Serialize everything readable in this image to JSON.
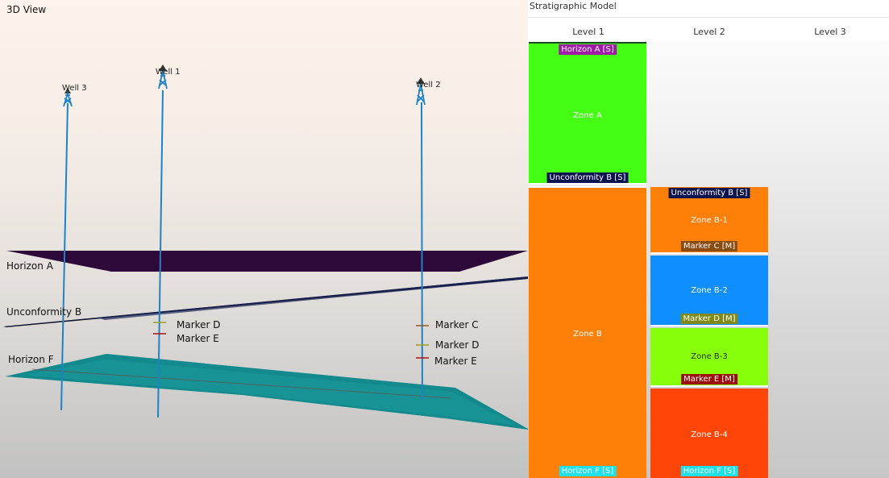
{
  "view3d": {
    "title": "3D View",
    "wells": [
      {
        "name": "Well 3"
      },
      {
        "name": "Well 1"
      },
      {
        "name": "Well 2"
      }
    ],
    "surfaces": {
      "horizon_a": "Horizon A",
      "unconformity_b": "Unconformity B",
      "horizon_f": "Horizon F"
    },
    "markers_well1": [
      "Marker D",
      "Marker E"
    ],
    "markers_well2": [
      "Marker C",
      "Marker D",
      "Marker E"
    ],
    "colors": {
      "well": "#1f82c4",
      "horizon_a": "#2d0a3a",
      "unconformity_b": "#0c0f2e",
      "horizon_f": "#138b8e"
    }
  },
  "strat": {
    "title": "Stratigraphic Model",
    "levels": [
      "Level 1",
      "Level 2",
      "Level 3"
    ],
    "level1": {
      "zone_a": {
        "label": "Zone A",
        "top": "Horizon A [S]",
        "bottom": "Unconformity B [S]",
        "color": "#44ff13"
      },
      "zone_b": {
        "label": "Zone B",
        "bottom": "Horizon F [S]",
        "color": "#ff8008"
      }
    },
    "level2": {
      "zone_b1": {
        "label": "Zone B-1",
        "top": "Unconformity B [S]",
        "bottom": "Marker C [M]",
        "color": "#ff8008"
      },
      "zone_b2": {
        "label": "Zone B-2",
        "bottom": "Marker D [M]",
        "color": "#0f8fff"
      },
      "zone_b3": {
        "label": "Zone B-3",
        "bottom": "Marker E [M]",
        "color": "#88ff0a"
      },
      "zone_b4": {
        "label": "Zone B-4",
        "bottom": "Horizon F [S]",
        "color": "#ff4508"
      }
    },
    "tag_colors": {
      "horizon_a": "#a01aa8",
      "unconformity": "#0e1450",
      "marker_c": "#8a4a10",
      "marker_d": "#808a18",
      "marker_e": "#9c0d0d",
      "horizon_f": "#20e0e8"
    }
  }
}
